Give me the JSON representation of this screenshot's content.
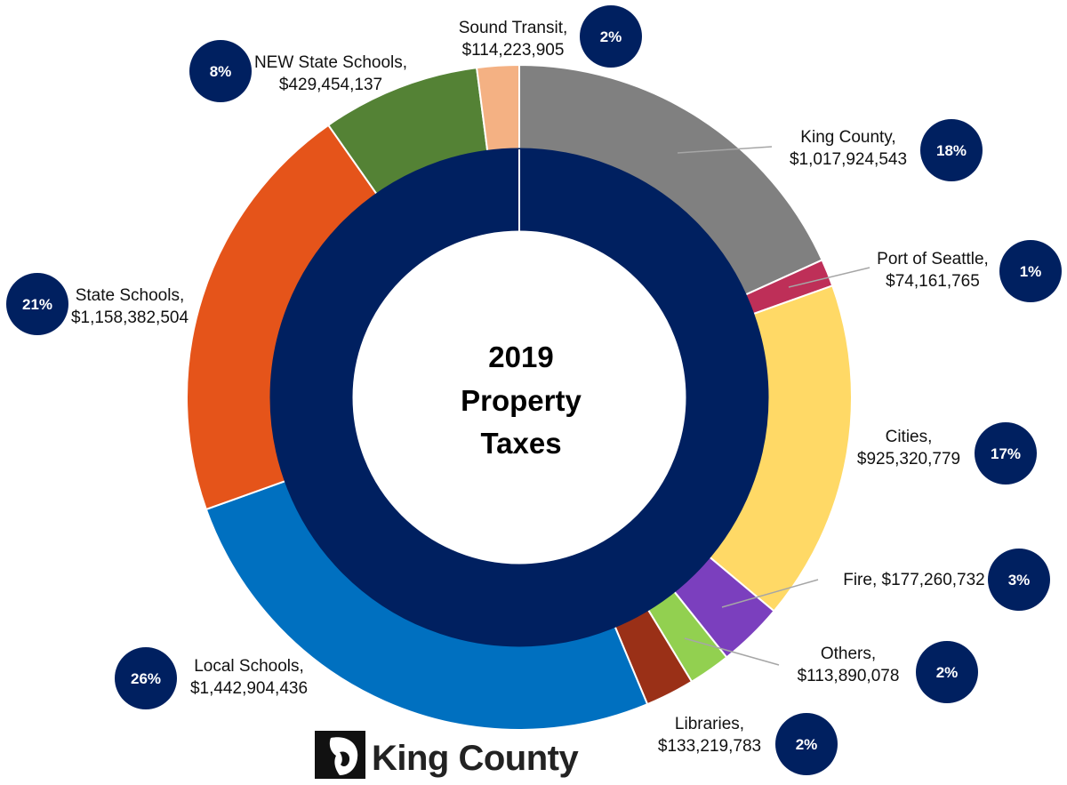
{
  "chart_data": {
    "type": "pie",
    "title_lines": [
      "2019",
      "Property",
      "Taxes"
    ],
    "inner_ring_color": "#002060",
    "badge_color": "#002060",
    "slices": [
      {
        "name": "King County",
        "label_lines": [
          "King County,",
          "$1,017,924,543"
        ],
        "value": 1017924543,
        "percent": "18%",
        "color": "#808080"
      },
      {
        "name": "Port of Seattle",
        "label_lines": [
          "Port of Seattle,",
          "$74,161,765"
        ],
        "value": 74161765,
        "percent": "1%",
        "color": "#BE2F58"
      },
      {
        "name": "Cities",
        "label_lines": [
          "Cities,",
          "$925,320,779"
        ],
        "value": 925320779,
        "percent": "17%",
        "color": "#FFD966"
      },
      {
        "name": "Fire",
        "label_lines": [
          "Fire,  $177,260,732"
        ],
        "value": 177260732,
        "percent": "3%",
        "color": "#7B3FBE"
      },
      {
        "name": "Others",
        "label_lines": [
          "Others,",
          "$113,890,078"
        ],
        "value": 113890078,
        "percent": "2%",
        "color": "#92D050"
      },
      {
        "name": "Libraries",
        "label_lines": [
          "Libraries,",
          "$133,219,783"
        ],
        "value": 133219783,
        "percent": "2%",
        "color": "#9A3017"
      },
      {
        "name": "Local Schools",
        "label_lines": [
          "Local Schools,",
          "$1,442,904,436"
        ],
        "value": 1442904436,
        "percent": "26%",
        "color": "#0070C0"
      },
      {
        "name": "State Schools",
        "label_lines": [
          "State Schools,",
          "$1,158,382,504"
        ],
        "value": 1158382504,
        "percent": "21%",
        "color": "#E5541A"
      },
      {
        "name": "NEW State Schools",
        "label_lines": [
          "NEW State Schools,",
          "$429,454,137"
        ],
        "value": 429454137,
        "percent": "8%",
        "color": "#548235"
      },
      {
        "name": "Sound Transit",
        "label_lines": [
          "Sound Transit,",
          "$114,223,905"
        ],
        "value": 114223905,
        "percent": "2%",
        "color": "#F4B183"
      }
    ]
  },
  "logo": {
    "text": "King County"
  }
}
